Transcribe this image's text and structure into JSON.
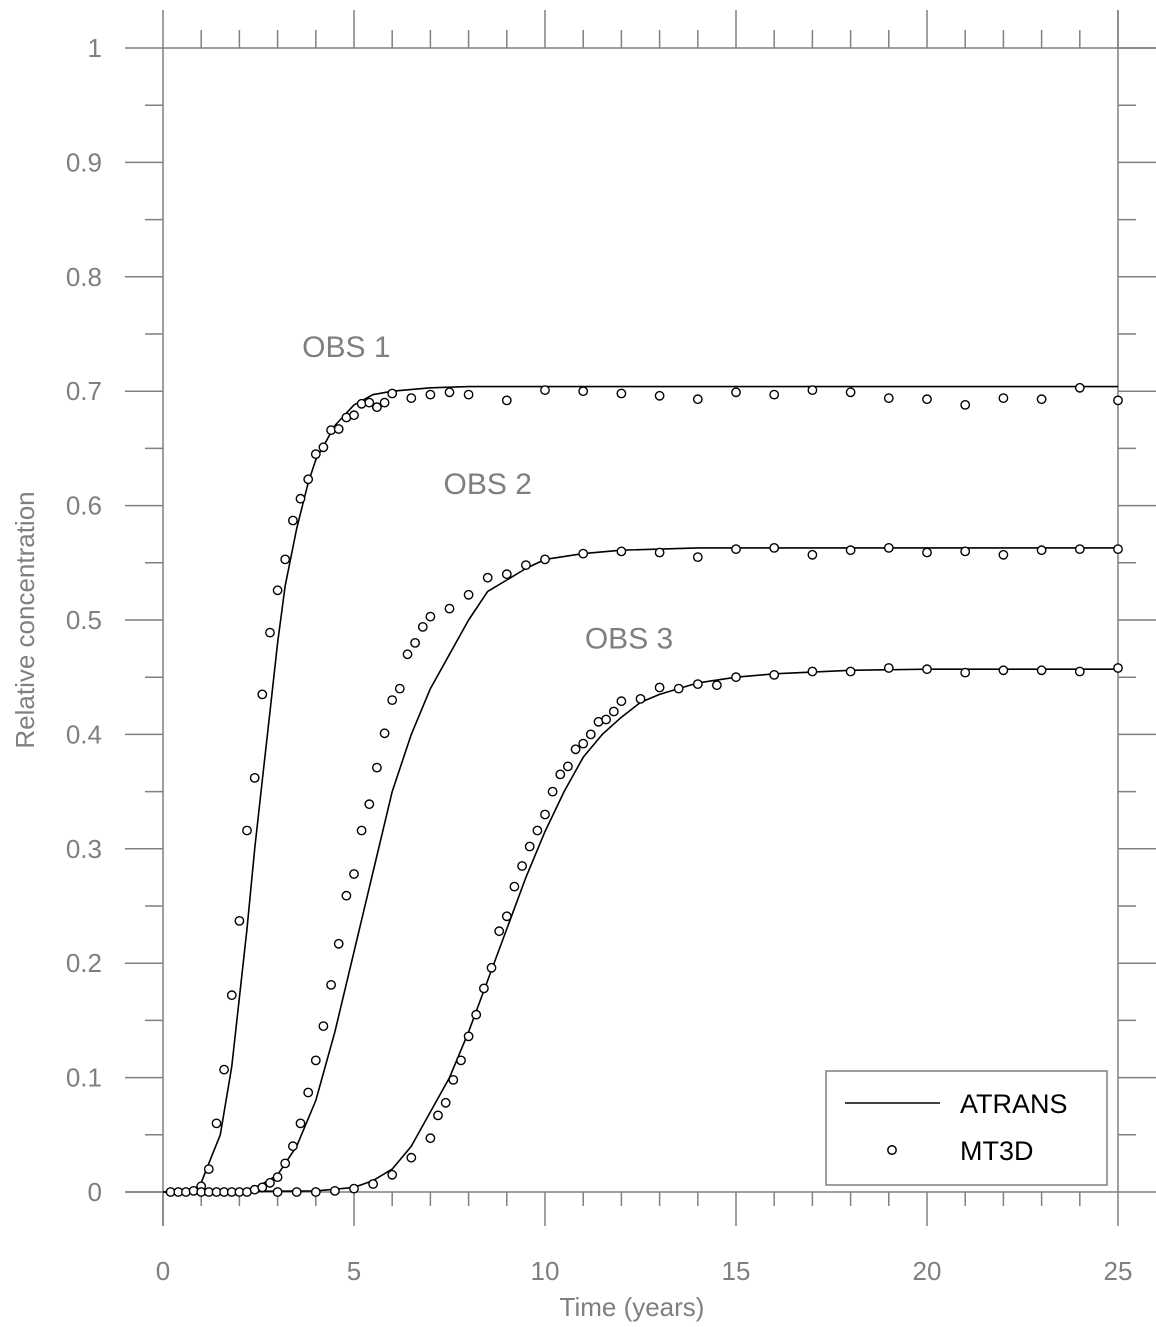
{
  "chart_data": {
    "type": "line",
    "xlabel": "Time (years)",
    "ylabel": "Relative concentration",
    "xlim": [
      0,
      25
    ],
    "ylim": [
      0,
      1
    ],
    "x_ticks": [
      "0",
      "5",
      "10",
      "15",
      "20",
      "25"
    ],
    "y_ticks": [
      "0",
      "0.1",
      "0.2",
      "0.3",
      "0.4",
      "0.5",
      "0.6",
      "0.7",
      "0.8",
      "0.9",
      "1"
    ],
    "grid": false,
    "legend_position": "bottom-right",
    "legend": [
      {
        "label": "ATRANS",
        "style": "line"
      },
      {
        "label": "MT3D",
        "style": "circle-marker"
      }
    ],
    "annotations": [
      {
        "text": "OBS 1",
        "x": 4.8,
        "y": 0.73
      },
      {
        "text": "OBS 2",
        "x": 8.5,
        "y": 0.61
      },
      {
        "text": "OBS 3",
        "x": 12.2,
        "y": 0.475
      }
    ],
    "series": [
      {
        "curve": "OBS 1",
        "atrans": {
          "x": [
            0,
            0.5,
            0.8,
            1.0,
            1.2,
            1.5,
            1.8,
            2.0,
            2.2,
            2.4,
            2.6,
            2.8,
            3.0,
            3.2,
            3.5,
            3.8,
            4.0,
            4.5,
            5.0,
            5.5,
            6.0,
            7.0,
            8.0,
            10.0,
            15.0,
            20.0,
            25.0
          ],
          "y": [
            0,
            0,
            0.002,
            0.008,
            0.025,
            0.05,
            0.11,
            0.17,
            0.23,
            0.3,
            0.36,
            0.42,
            0.48,
            0.53,
            0.58,
            0.62,
            0.64,
            0.67,
            0.688,
            0.697,
            0.7,
            0.703,
            0.704,
            0.704,
            0.704,
            0.704,
            0.704
          ]
        },
        "mt3d": {
          "x": [
            0.2,
            0.4,
            0.6,
            0.8,
            1.0,
            1.2,
            1.4,
            1.6,
            1.8,
            2.0,
            2.2,
            2.4,
            2.6,
            2.8,
            3.0,
            3.2,
            3.4,
            3.6,
            3.8,
            4.0,
            4.2,
            4.4,
            4.6,
            4.8,
            5.0,
            5.2,
            5.4,
            5.6,
            5.8,
            6.0,
            6.5,
            7.0,
            7.5,
            8.0,
            9.0,
            10.0,
            11.0,
            12.0,
            13.0,
            14.0,
            15.0,
            16.0,
            17.0,
            18.0,
            19.0,
            20.0,
            21.0,
            22.0,
            23.0,
            24.0,
            25.0
          ],
          "y": [
            0,
            0,
            0,
            0.001,
            0.005,
            0.02,
            0.06,
            0.107,
            0.172,
            0.237,
            0.316,
            0.362,
            0.435,
            0.489,
            0.526,
            0.553,
            0.587,
            0.606,
            0.623,
            0.645,
            0.651,
            0.666,
            0.667,
            0.677,
            0.679,
            0.689,
            0.69,
            0.686,
            0.69,
            0.698,
            0.694,
            0.697,
            0.699,
            0.697,
            0.692,
            0.701,
            0.7,
            0.698,
            0.696,
            0.693,
            0.699,
            0.697,
            0.701,
            0.699,
            0.694,
            0.693,
            0.688,
            0.694,
            0.693,
            0.703,
            0.692
          ]
        }
      },
      {
        "curve": "OBS 2",
        "atrans": {
          "x": [
            0,
            2.0,
            2.5,
            3.0,
            3.5,
            4.0,
            4.5,
            5.0,
            5.5,
            6.0,
            6.5,
            7.0,
            7.5,
            8.0,
            8.5,
            9.0,
            9.5,
            10.0,
            11.0,
            12.0,
            14.0,
            17.0,
            20.0,
            25.0
          ],
          "y": [
            0,
            0.001,
            0.005,
            0.015,
            0.04,
            0.08,
            0.14,
            0.21,
            0.28,
            0.35,
            0.4,
            0.44,
            0.47,
            0.5,
            0.525,
            0.535,
            0.545,
            0.553,
            0.558,
            0.561,
            0.563,
            0.563,
            0.563,
            0.563
          ]
        },
        "mt3d": {
          "x": [
            1.0,
            1.2,
            1.4,
            1.6,
            1.8,
            2.0,
            2.2,
            2.4,
            2.6,
            2.8,
            3.0,
            3.2,
            3.4,
            3.6,
            3.8,
            4.0,
            4.2,
            4.4,
            4.6,
            4.8,
            5.0,
            5.2,
            5.4,
            5.6,
            5.8,
            6.0,
            6.2,
            6.4,
            6.6,
            6.8,
            7.0,
            7.5,
            8.0,
            8.5,
            9.0,
            9.5,
            10.0,
            11.0,
            12.0,
            13.0,
            14.0,
            15.0,
            16.0,
            17.0,
            18.0,
            19.0,
            20.0,
            21.0,
            22.0,
            23.0,
            24.0,
            25.0
          ],
          "y": [
            0,
            0,
            0,
            0,
            0,
            0,
            0,
            0.002,
            0.004,
            0.008,
            0.013,
            0.025,
            0.04,
            0.06,
            0.087,
            0.115,
            0.145,
            0.181,
            0.217,
            0.259,
            0.278,
            0.316,
            0.339,
            0.371,
            0.401,
            0.43,
            0.44,
            0.47,
            0.48,
            0.494,
            0.503,
            0.51,
            0.522,
            0.537,
            0.54,
            0.548,
            0.553,
            0.558,
            0.56,
            0.559,
            0.555,
            0.562,
            0.563,
            0.557,
            0.561,
            0.563,
            0.559,
            0.56,
            0.557,
            0.561,
            0.562,
            0.562
          ]
        }
      },
      {
        "curve": "OBS 3",
        "atrans": {
          "x": [
            0,
            4.0,
            5.0,
            5.5,
            6.0,
            6.5,
            7.0,
            7.5,
            8.0,
            8.5,
            9.0,
            9.5,
            10.0,
            10.5,
            11.0,
            11.5,
            12.0,
            12.5,
            13.0,
            14.0,
            15.0,
            16.0,
            18.0,
            20.0,
            25.0
          ],
          "y": [
            0,
            0.001,
            0.004,
            0.01,
            0.02,
            0.04,
            0.07,
            0.1,
            0.14,
            0.185,
            0.23,
            0.275,
            0.315,
            0.35,
            0.38,
            0.4,
            0.415,
            0.428,
            0.435,
            0.445,
            0.45,
            0.453,
            0.456,
            0.457,
            0.457
          ]
        },
        "mt3d": {
          "x": [
            3.0,
            3.5,
            4.0,
            4.5,
            5.0,
            5.5,
            6.0,
            6.5,
            7.0,
            7.2,
            7.4,
            7.6,
            7.8,
            8.0,
            8.2,
            8.4,
            8.6,
            8.8,
            9.0,
            9.2,
            9.4,
            9.6,
            9.8,
            10.0,
            10.2,
            10.4,
            10.6,
            10.8,
            11.0,
            11.2,
            11.4,
            11.6,
            11.8,
            12.0,
            12.5,
            13.0,
            13.5,
            14.0,
            14.5,
            15.0,
            16.0,
            17.0,
            18.0,
            19.0,
            20.0,
            21.0,
            22.0,
            23.0,
            24.0,
            25.0
          ],
          "y": [
            0,
            0,
            0,
            0.001,
            0.003,
            0.007,
            0.015,
            0.03,
            0.047,
            0.067,
            0.078,
            0.098,
            0.115,
            0.136,
            0.155,
            0.178,
            0.196,
            0.228,
            0.241,
            0.267,
            0.285,
            0.302,
            0.316,
            0.33,
            0.35,
            0.365,
            0.372,
            0.387,
            0.392,
            0.4,
            0.411,
            0.413,
            0.42,
            0.429,
            0.431,
            0.441,
            0.44,
            0.444,
            0.443,
            0.45,
            0.452,
            0.455,
            0.455,
            0.458,
            0.457,
            0.454,
            0.456,
            0.456,
            0.455,
            0.458
          ]
        }
      }
    ]
  }
}
